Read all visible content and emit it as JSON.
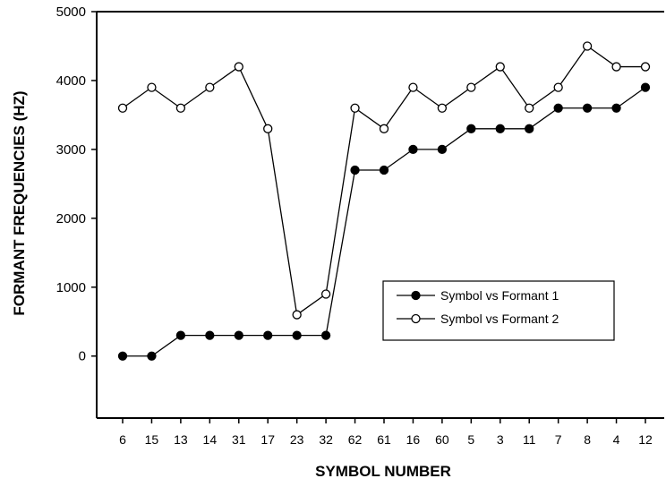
{
  "chart_data": {
    "type": "line",
    "title": "",
    "xlabel": "SYMBOL NUMBER",
    "ylabel": "FORMANT FREQUENCIES (HZ)",
    "categories": [
      "6",
      "15",
      "13",
      "14",
      "31",
      "17",
      "23",
      "32",
      "62",
      "61",
      "16",
      "60",
      "5",
      "3",
      "11",
      "7",
      "8",
      "4",
      "12"
    ],
    "ylim": [
      -900,
      5000
    ],
    "yticks": [
      0,
      1000,
      2000,
      3000,
      4000,
      5000
    ],
    "grid": false,
    "legend_position": "center-right",
    "series": [
      {
        "name": "Symbol vs Formant 1",
        "marker": "filled-circle",
        "color": "#000000",
        "values": [
          0,
          0,
          300,
          300,
          300,
          300,
          300,
          300,
          2700,
          2700,
          3000,
          3000,
          3300,
          3300,
          3300,
          3600,
          3600,
          3600,
          3900
        ]
      },
      {
        "name": "Symbol vs Formant 2",
        "marker": "open-circle",
        "color": "#000000",
        "values": [
          3600,
          3900,
          3600,
          3900,
          4200,
          3300,
          600,
          900,
          3600,
          3300,
          3900,
          3600,
          3900,
          4200,
          3600,
          3900,
          4500,
          4200,
          4200
        ]
      }
    ]
  }
}
